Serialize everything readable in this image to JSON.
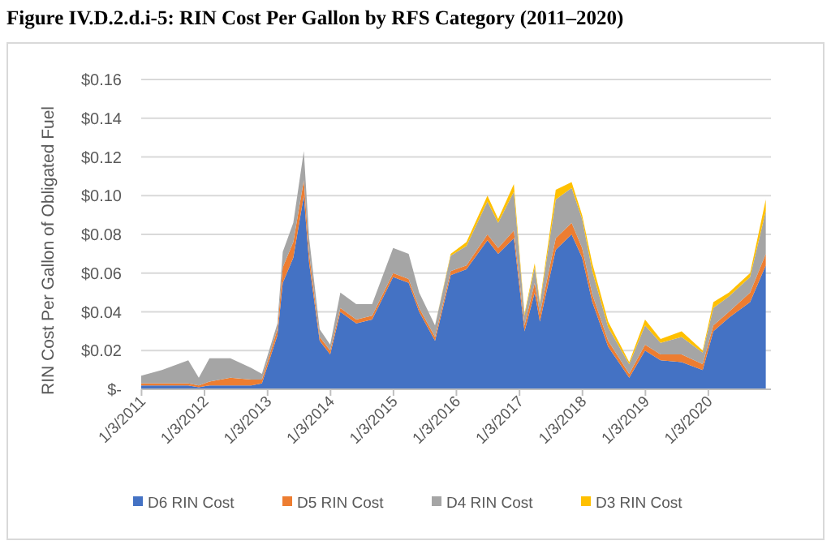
{
  "chart_data": {
    "type": "area",
    "stacked": true,
    "title": "Figure IV.D.2.d.i-5: RIN Cost Per Gallon by RFS Category (2011–2020)",
    "ylabel": "RIN Cost Per Gallon of Obligated Fuel",
    "x": [
      "2011-01",
      "2011-05",
      "2011-10",
      "2011-12",
      "2012-02",
      "2012-06",
      "2012-10",
      "2012-12",
      "2013-03",
      "2013-04",
      "2013-06",
      "2013-08",
      "2013-09",
      "2013-11",
      "2014-01",
      "2014-03",
      "2014-06",
      "2014-09",
      "2015-01",
      "2015-04",
      "2015-06",
      "2015-09",
      "2015-12",
      "2016-03",
      "2016-07",
      "2016-09",
      "2016-12",
      "2017-02",
      "2017-04",
      "2017-05",
      "2017-08",
      "2017-11",
      "2018-01",
      "2018-03",
      "2018-06",
      "2018-10",
      "2019-01",
      "2019-04",
      "2019-08",
      "2019-12",
      "2020-02",
      "2020-05",
      "2020-09",
      "2020-12"
    ],
    "series": [
      {
        "name": "D6 RIN Cost",
        "color": "#4472c4",
        "values": [
          0.002,
          0.002,
          0.002,
          0.001,
          0.002,
          0.002,
          0.002,
          0.003,
          0.028,
          0.055,
          0.068,
          0.1,
          0.065,
          0.025,
          0.018,
          0.04,
          0.034,
          0.036,
          0.058,
          0.055,
          0.04,
          0.025,
          0.059,
          0.062,
          0.077,
          0.07,
          0.078,
          0.03,
          0.05,
          0.035,
          0.072,
          0.08,
          0.068,
          0.045,
          0.022,
          0.006,
          0.02,
          0.015,
          0.014,
          0.01,
          0.03,
          0.037,
          0.045,
          0.064
        ]
      },
      {
        "name": "D5 RIN Cost",
        "color": "#ed7d31",
        "values": [
          0.001,
          0.001,
          0.001,
          0.001,
          0.002,
          0.004,
          0.003,
          0.002,
          0.003,
          0.008,
          0.008,
          0.008,
          0.005,
          0.002,
          0.002,
          0.002,
          0.002,
          0.002,
          0.002,
          0.002,
          0.002,
          0.002,
          0.002,
          0.002,
          0.003,
          0.003,
          0.004,
          0.003,
          0.005,
          0.004,
          0.006,
          0.006,
          0.005,
          0.004,
          0.003,
          0.002,
          0.003,
          0.003,
          0.004,
          0.003,
          0.003,
          0.003,
          0.005,
          0.006
        ]
      },
      {
        "name": "D4 RIN Cost",
        "color": "#a5a5a5",
        "values": [
          0.004,
          0.007,
          0.012,
          0.004,
          0.012,
          0.01,
          0.006,
          0.003,
          0.003,
          0.008,
          0.01,
          0.015,
          0.008,
          0.004,
          0.003,
          0.008,
          0.008,
          0.006,
          0.013,
          0.013,
          0.008,
          0.006,
          0.008,
          0.01,
          0.017,
          0.013,
          0.02,
          0.005,
          0.008,
          0.005,
          0.02,
          0.018,
          0.015,
          0.012,
          0.007,
          0.005,
          0.01,
          0.006,
          0.009,
          0.006,
          0.009,
          0.008,
          0.008,
          0.022
        ]
      },
      {
        "name": "D3 RIN Cost",
        "color": "#ffc000",
        "values": [
          0,
          0,
          0,
          0,
          0,
          0,
          0,
          0,
          0,
          0,
          0,
          0,
          0,
          0,
          0,
          0,
          0,
          0,
          0,
          0,
          0,
          0,
          0.001,
          0.002,
          0.003,
          0.002,
          0.004,
          0.001,
          0.002,
          0.001,
          0.005,
          0.003,
          0.002,
          0.004,
          0.003,
          0.001,
          0.003,
          0.002,
          0.003,
          0.001,
          0.003,
          0.002,
          0.002,
          0.006
        ]
      }
    ],
    "xlim": [
      "2011-01-01",
      "2020-12-31"
    ],
    "xticks": [
      {
        "value": "2011-01-03",
        "label": "1/3/2011"
      },
      {
        "value": "2012-01-03",
        "label": "1/3/2012"
      },
      {
        "value": "2013-01-03",
        "label": "1/3/2013"
      },
      {
        "value": "2014-01-03",
        "label": "1/3/2014"
      },
      {
        "value": "2015-01-03",
        "label": "1/3/2015"
      },
      {
        "value": "2016-01-03",
        "label": "1/3/2016"
      },
      {
        "value": "2017-01-03",
        "label": "1/3/2017"
      },
      {
        "value": "2018-01-03",
        "label": "1/3/2018"
      },
      {
        "value": "2019-01-03",
        "label": "1/3/2019"
      },
      {
        "value": "2020-01-03",
        "label": "1/3/2020"
      }
    ],
    "ylim": [
      0,
      0.16
    ],
    "yticks": [
      {
        "value": 0,
        "label": "$-"
      },
      {
        "value": 0.02,
        "label": "$0.02"
      },
      {
        "value": 0.04,
        "label": "$0.04"
      },
      {
        "value": 0.06,
        "label": "$0.06"
      },
      {
        "value": 0.08,
        "label": "$0.08"
      },
      {
        "value": 0.1,
        "label": "$0.10"
      },
      {
        "value": 0.12,
        "label": "$0.12"
      },
      {
        "value": 0.14,
        "label": "$0.14"
      },
      {
        "value": 0.16,
        "label": "$0.16"
      }
    ],
    "grid": "y",
    "legend": "bottom"
  }
}
